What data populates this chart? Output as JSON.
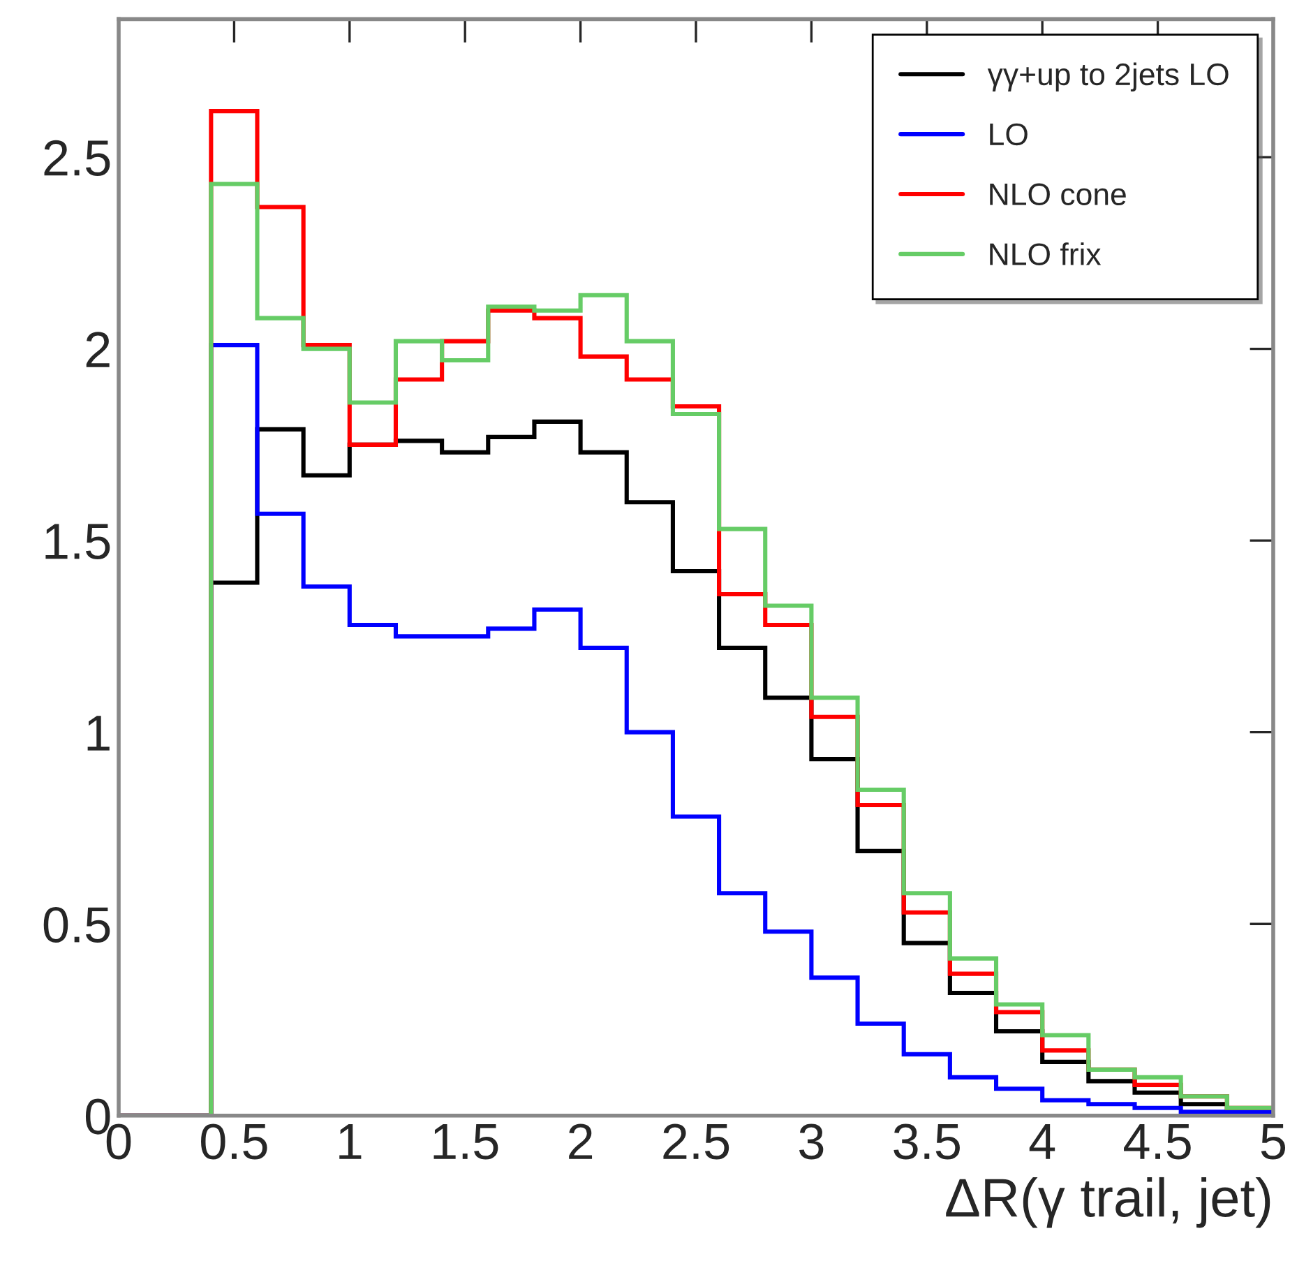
{
  "chart_data": {
    "type": "histogram",
    "xlabel": "ΔR(γ trail, jet)",
    "bins": [
      0,
      0.2,
      0.4,
      0.6,
      0.8,
      1.0,
      1.2,
      1.4,
      1.6,
      1.8,
      2.0,
      2.2,
      2.4,
      2.6,
      2.8,
      3.0,
      3.2,
      3.4,
      3.6,
      3.8,
      4.0,
      4.2,
      4.4,
      4.6,
      4.8,
      5.0
    ],
    "series": [
      {
        "name": "γγ+up to 2jets LO",
        "color": "#000000",
        "values": [
          0,
          0,
          1.39,
          1.79,
          1.67,
          1.75,
          1.76,
          1.73,
          1.77,
          1.81,
          1.73,
          1.6,
          1.42,
          1.22,
          1.09,
          0.93,
          0.69,
          0.45,
          0.32,
          0.22,
          0.14,
          0.09,
          0.06,
          0.03,
          0.01
        ]
      },
      {
        "name": "LO",
        "color": "#0000ff",
        "values": [
          0,
          0,
          2.01,
          1.57,
          1.38,
          1.28,
          1.25,
          1.25,
          1.27,
          1.32,
          1.22,
          1.0,
          0.78,
          0.58,
          0.48,
          0.36,
          0.24,
          0.16,
          0.1,
          0.07,
          0.04,
          0.03,
          0.02,
          0.01,
          0.01
        ]
      },
      {
        "name": "NLO cone",
        "color": "#ff0000",
        "values": [
          0,
          0,
          2.62,
          2.37,
          2.01,
          1.75,
          1.92,
          2.02,
          2.1,
          2.08,
          1.98,
          1.92,
          1.85,
          1.36,
          1.28,
          1.04,
          0.81,
          0.53,
          0.37,
          0.27,
          0.17,
          0.12,
          0.08,
          0.05,
          0.02
        ]
      },
      {
        "name": "NLO frix",
        "color": "#66cc66",
        "values": [
          0,
          0,
          2.43,
          2.08,
          2.0,
          1.86,
          2.02,
          1.97,
          2.11,
          2.1,
          2.14,
          2.02,
          1.83,
          1.53,
          1.33,
          1.09,
          0.85,
          0.58,
          0.41,
          0.29,
          0.21,
          0.12,
          0.1,
          0.05,
          0.02
        ]
      }
    ],
    "xlim": [
      0,
      5
    ],
    "ylim": [
      0,
      2.86
    ],
    "xticks": [
      0,
      0.5,
      1,
      1.5,
      2,
      2.5,
      3,
      3.5,
      4,
      4.5,
      5
    ],
    "yticks": [
      0,
      0.5,
      1,
      1.5,
      2,
      2.5
    ],
    "legend": "top right",
    "grid": false
  }
}
